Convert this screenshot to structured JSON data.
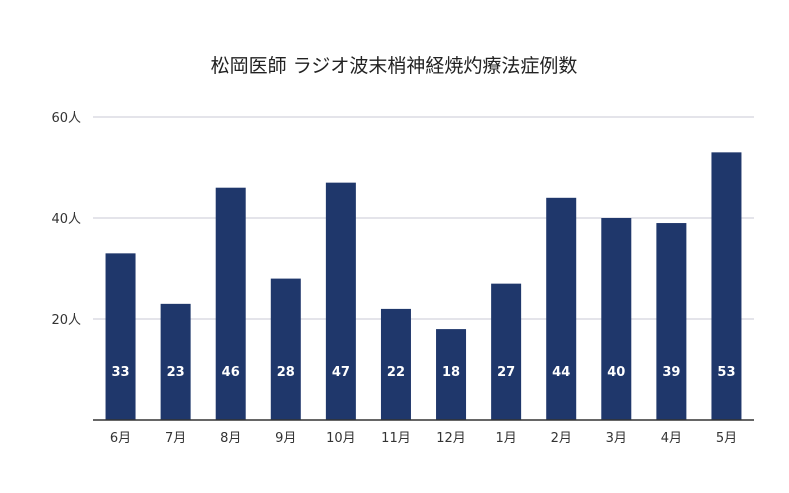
{
  "chart_data": {
    "type": "bar",
    "title": "松岡医師 ラジオ波末梢神経焼灼療法症例数",
    "categories": [
      "6月",
      "7月",
      "8月",
      "9月",
      "10月",
      "11月",
      "12月",
      "1月",
      "2月",
      "3月",
      "4月",
      "5月"
    ],
    "values": [
      33,
      23,
      46,
      28,
      47,
      22,
      18,
      27,
      44,
      40,
      39,
      53
    ],
    "ylim": [
      0,
      60
    ],
    "yticks": [
      "20人",
      "40人",
      "60人"
    ],
    "grid": true,
    "bar_color": "#1f376b"
  }
}
